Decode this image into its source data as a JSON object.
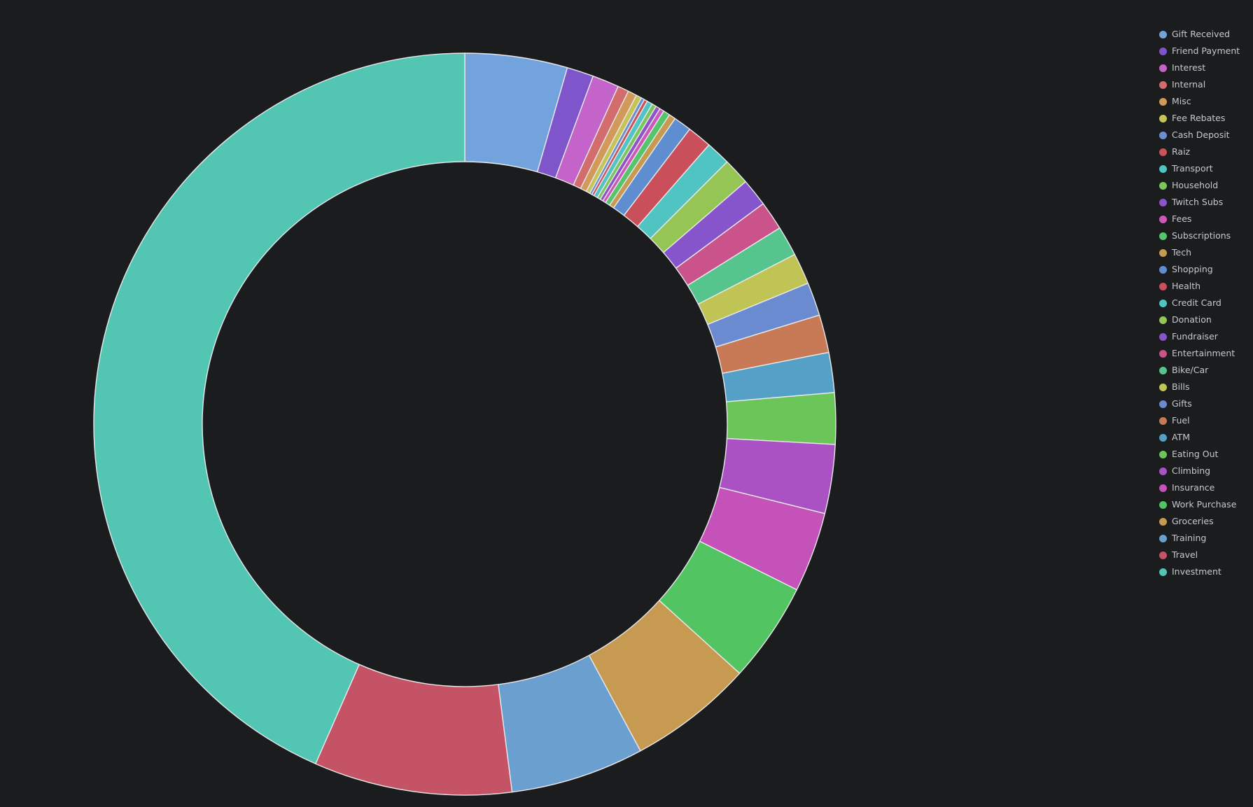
{
  "chart_data": {
    "type": "pie",
    "variant": "donut",
    "legend_placement": "right",
    "categories": [
      "Gift Received",
      "Friend Payment",
      "Interest",
      "Internal",
      "Misc",
      "Fee Rebates",
      "Cash Deposit",
      "Raiz",
      "Transport",
      "Household",
      "Twitch Subs",
      "Fees",
      "Subscriptions",
      "Tech",
      "Shopping",
      "Health",
      "Credit Card",
      "Donation",
      "Fundraiser",
      "Entertainment",
      "Bike/Car",
      "Bills",
      "Gifts",
      "Fuel",
      "ATM",
      "Eating Out",
      "Climbing",
      "Insurance",
      "Work Purchase",
      "Groceries",
      "Training",
      "Travel",
      "Investment"
    ],
    "values": [
      4.6,
      1.2,
      1.2,
      0.5,
      0.4,
      0.25,
      0.15,
      0.15,
      0.25,
      0.2,
      0.2,
      0.2,
      0.3,
      0.3,
      0.8,
      1.1,
      1.1,
      1.2,
      1.25,
      1.3,
      1.35,
      1.4,
      1.5,
      1.7,
      1.8,
      2.3,
      3.1,
      3.6,
      4.5,
      5.6,
      6.0,
      8.9,
      44.8
    ],
    "colors": [
      "#73a3dc",
      "#7f55cc",
      "#c463c9",
      "#d36c6c",
      "#d29a5a",
      "#c7c457",
      "#6a8fd3",
      "#c8545a",
      "#4fc3c5",
      "#7bc65a",
      "#8e52c9",
      "#cc59b9",
      "#56c46a",
      "#c79a52",
      "#5f8ed0",
      "#c9505a",
      "#50c4c2",
      "#94c555",
      "#8755cb",
      "#c9538a",
      "#55c48d",
      "#bfc455",
      "#6b8bd0",
      "#c77a55",
      "#55a0c7",
      "#6cc559",
      "#aa52c4",
      "#c452b8",
      "#52c462",
      "#c79a52",
      "#6a9fd0",
      "#c55366",
      "#52c6b3"
    ]
  }
}
